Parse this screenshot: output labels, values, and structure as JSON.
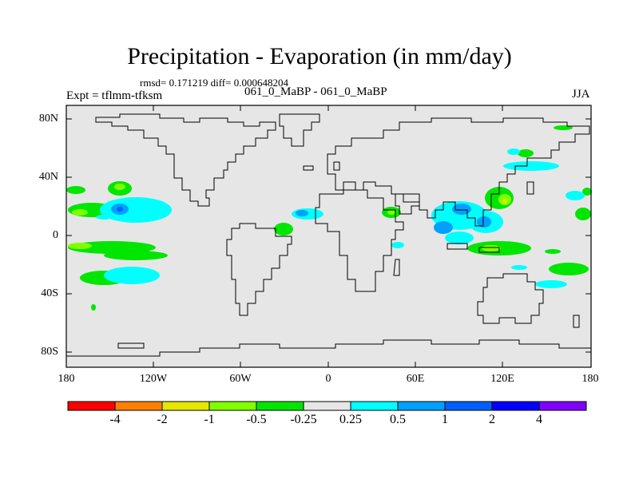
{
  "title": "Precipitation - Evaporation (in mm/day)",
  "stats": "rmsd= 0.171219 diff= 0.000648204",
  "experiment": "Expt = tflmm-tfksm",
  "cases": "061_0_MaBP - 061_0_MaBP",
  "season": "JJA",
  "lat_ticks": [
    "80N",
    "40N",
    "0",
    "40S",
    "80S"
  ],
  "lon_ticks": [
    "180",
    "120W",
    "60W",
    "0",
    "60E",
    "120E",
    "180"
  ],
  "colorbar": {
    "colors": [
      "#ff0000",
      "#ff8000",
      "#e6e600",
      "#80ff00",
      "#00e600",
      "#e6e6e6",
      "#00ffff",
      "#00a0ff",
      "#0060ff",
      "#0000ff",
      "#8000ff"
    ],
    "labels": [
      "-4",
      "-2",
      "-1",
      "-0.5",
      "-0.25",
      "0.25",
      "0.5",
      "1",
      "2",
      "4"
    ]
  }
}
